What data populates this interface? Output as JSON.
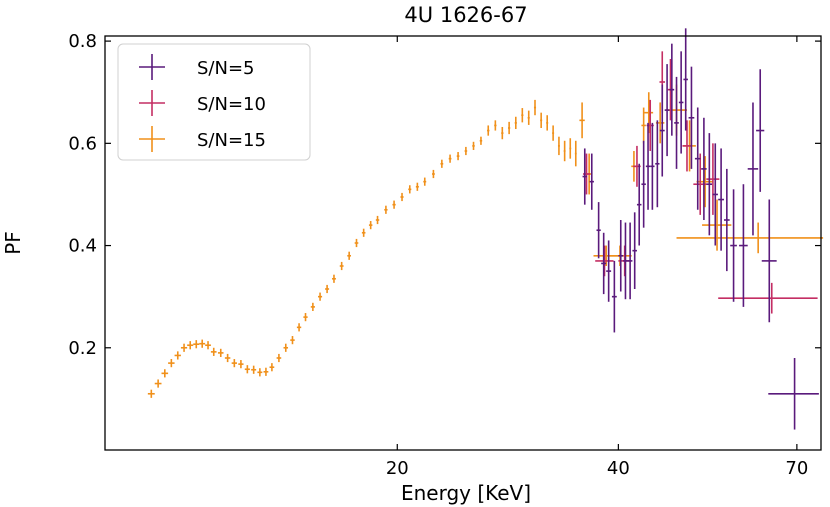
{
  "chart_data": {
    "type": "scatter",
    "title": "4U 1626-67",
    "xlabel": "Energy [KeV]",
    "ylabel": "PF",
    "xscale": "log",
    "xlim": [
      8.0,
      75.5
    ],
    "ylim": [
      0.0,
      0.81
    ],
    "xticks": [
      20,
      40,
      70
    ],
    "xtick_labels": [
      "20",
      "40",
      "70"
    ],
    "yticks": [
      0.2,
      0.4,
      0.6,
      0.8
    ],
    "ytick_labels": [
      "0.2",
      "0.4",
      "0.6",
      "0.8"
    ],
    "legend_position": "top-left",
    "series": [
      {
        "name": "S/N=15",
        "label": "S/N=15",
        "color": "#f0901a",
        "points": [
          [
            9.25,
            0.11,
            0.1,
            0.008
          ],
          [
            9.45,
            0.13,
            0.1,
            0.008
          ],
          [
            9.65,
            0.15,
            0.1,
            0.008
          ],
          [
            9.85,
            0.17,
            0.1,
            0.008
          ],
          [
            10.05,
            0.185,
            0.1,
            0.008
          ],
          [
            10.25,
            0.2,
            0.1,
            0.008
          ],
          [
            10.45,
            0.205,
            0.1,
            0.008
          ],
          [
            10.65,
            0.207,
            0.1,
            0.008
          ],
          [
            10.85,
            0.208,
            0.1,
            0.008
          ],
          [
            11.05,
            0.205,
            0.1,
            0.008
          ],
          [
            11.25,
            0.192,
            0.1,
            0.008
          ],
          [
            11.5,
            0.19,
            0.1,
            0.008
          ],
          [
            11.75,
            0.18,
            0.1,
            0.008
          ],
          [
            12.0,
            0.17,
            0.1,
            0.008
          ],
          [
            12.25,
            0.168,
            0.1,
            0.008
          ],
          [
            12.5,
            0.158,
            0.1,
            0.008
          ],
          [
            12.75,
            0.157,
            0.1,
            0.008
          ],
          [
            13.0,
            0.152,
            0.1,
            0.008
          ],
          [
            13.25,
            0.153,
            0.1,
            0.008
          ],
          [
            13.5,
            0.162,
            0.1,
            0.008
          ],
          [
            13.8,
            0.18,
            0.1,
            0.008
          ],
          [
            14.1,
            0.2,
            0.1,
            0.008
          ],
          [
            14.4,
            0.215,
            0.1,
            0.008
          ],
          [
            14.7,
            0.24,
            0.1,
            0.008
          ],
          [
            15.0,
            0.26,
            0.1,
            0.008
          ],
          [
            15.35,
            0.28,
            0.1,
            0.008
          ],
          [
            15.7,
            0.3,
            0.1,
            0.008
          ],
          [
            16.05,
            0.315,
            0.1,
            0.008
          ],
          [
            16.4,
            0.335,
            0.1,
            0.008
          ],
          [
            16.8,
            0.36,
            0.1,
            0.008
          ],
          [
            17.2,
            0.38,
            0.1,
            0.008
          ],
          [
            17.6,
            0.405,
            0.1,
            0.008
          ],
          [
            18.0,
            0.425,
            0.1,
            0.008
          ],
          [
            18.4,
            0.44,
            0.1,
            0.008
          ],
          [
            18.8,
            0.45,
            0.1,
            0.008
          ],
          [
            19.3,
            0.47,
            0.1,
            0.008
          ],
          [
            19.8,
            0.48,
            0.1,
            0.008
          ],
          [
            20.3,
            0.495,
            0.1,
            0.008
          ],
          [
            20.8,
            0.51,
            0.1,
            0.008
          ],
          [
            21.3,
            0.515,
            0.1,
            0.008
          ],
          [
            21.8,
            0.525,
            0.1,
            0.008
          ],
          [
            22.4,
            0.54,
            0.1,
            0.008
          ],
          [
            23.0,
            0.56,
            0.1,
            0.008
          ],
          [
            23.6,
            0.57,
            0.1,
            0.008
          ],
          [
            24.2,
            0.575,
            0.1,
            0.008
          ],
          [
            24.8,
            0.585,
            0.1,
            0.008
          ],
          [
            25.4,
            0.595,
            0.1,
            0.008
          ],
          [
            26.0,
            0.605,
            0.1,
            0.008
          ],
          [
            26.6,
            0.625,
            0.1,
            0.01
          ],
          [
            27.2,
            0.635,
            0.1,
            0.01
          ],
          [
            27.8,
            0.62,
            0.1,
            0.012
          ],
          [
            28.4,
            0.63,
            0.1,
            0.012
          ],
          [
            29.0,
            0.64,
            0.1,
            0.012
          ],
          [
            29.6,
            0.655,
            0.1,
            0.014
          ],
          [
            30.2,
            0.65,
            0.1,
            0.014
          ],
          [
            30.8,
            0.67,
            0.1,
            0.015
          ],
          [
            31.4,
            0.645,
            0.1,
            0.015
          ],
          [
            32.0,
            0.64,
            0.1,
            0.015
          ],
          [
            32.6,
            0.62,
            0.1,
            0.015
          ],
          [
            33.2,
            0.595,
            0.1,
            0.018
          ],
          [
            33.8,
            0.585,
            0.1,
            0.02
          ],
          [
            34.4,
            0.59,
            0.1,
            0.02
          ],
          [
            35.0,
            0.58,
            0.1,
            0.025
          ],
          [
            35.7,
            0.645,
            0.3,
            0.035
          ],
          [
            36.5,
            0.54,
            0.35,
            0.04
          ],
          [
            38.5,
            0.38,
            1.5,
            0.02
          ],
          [
            40.2,
            0.38,
            1.5,
            0.02
          ],
          [
            42.0,
            0.555,
            0.35,
            0.03
          ],
          [
            43.3,
            0.635,
            0.3,
            0.035
          ],
          [
            44.0,
            0.66,
            0.6,
            0.04
          ],
          [
            45.6,
            0.64,
            0.6,
            0.04
          ],
          [
            48.0,
            0.665,
            1.6,
            0.05
          ],
          [
            50.0,
            0.595,
            1.0,
            0.05
          ],
          [
            52.5,
            0.525,
            1.4,
            0.05
          ],
          [
            54.5,
            0.44,
            2.5,
            0.05
          ],
          [
            62.0,
            0.415,
            14.0,
            0.03
          ]
        ]
      },
      {
        "name": "S/N=10",
        "label": "S/N=10",
        "color": "#c42e63",
        "points": [
          [
            36.2,
            0.54,
            0.4,
            0.04
          ],
          [
            38.3,
            0.37,
            1.1,
            0.03
          ],
          [
            40.8,
            0.37,
            0.8,
            0.03
          ],
          [
            42.4,
            0.555,
            0.5,
            0.04
          ],
          [
            44.2,
            0.635,
            0.5,
            0.05
          ],
          [
            45.9,
            0.72,
            0.4,
            0.06
          ],
          [
            47.1,
            0.705,
            0.4,
            0.06
          ],
          [
            49.6,
            0.595,
            0.7,
            0.05
          ],
          [
            51.7,
            0.52,
            1.1,
            0.06
          ],
          [
            53.8,
            0.53,
            1.1,
            0.07
          ],
          [
            64.7,
            0.297,
            10.0,
            0.03
          ]
        ]
      },
      {
        "name": "S/N=5",
        "label": "S/N=5",
        "color": "#5a1a7c",
        "points": [
          [
            36.0,
            0.535,
            0.25,
            0.055
          ],
          [
            36.8,
            0.525,
            0.25,
            0.055
          ],
          [
            37.6,
            0.43,
            0.25,
            0.055
          ],
          [
            38.2,
            0.365,
            0.3,
            0.06
          ],
          [
            38.8,
            0.35,
            0.3,
            0.06
          ],
          [
            39.5,
            0.3,
            0.3,
            0.07
          ],
          [
            40.3,
            0.38,
            0.3,
            0.07
          ],
          [
            40.9,
            0.37,
            0.3,
            0.075
          ],
          [
            41.5,
            0.37,
            0.3,
            0.075
          ],
          [
            42.1,
            0.39,
            0.3,
            0.075
          ],
          [
            42.7,
            0.48,
            0.3,
            0.08
          ],
          [
            43.3,
            0.52,
            0.3,
            0.085
          ],
          [
            43.9,
            0.555,
            0.3,
            0.085
          ],
          [
            44.5,
            0.555,
            0.3,
            0.085
          ],
          [
            45.2,
            0.56,
            0.3,
            0.085
          ],
          [
            45.9,
            0.625,
            0.35,
            0.09
          ],
          [
            46.6,
            0.665,
            0.35,
            0.09
          ],
          [
            47.3,
            0.705,
            0.35,
            0.09
          ],
          [
            48.0,
            0.64,
            0.35,
            0.09
          ],
          [
            48.7,
            0.68,
            0.35,
            0.1
          ],
          [
            49.4,
            0.725,
            0.35,
            0.1
          ],
          [
            50.3,
            0.65,
            0.45,
            0.1
          ],
          [
            51.3,
            0.57,
            0.45,
            0.1
          ],
          [
            52.3,
            0.55,
            0.45,
            0.1
          ],
          [
            53.2,
            0.52,
            0.45,
            0.1
          ],
          [
            54.2,
            0.5,
            0.45,
            0.1
          ],
          [
            55.2,
            0.49,
            0.5,
            0.1
          ],
          [
            56.2,
            0.45,
            0.5,
            0.1
          ],
          [
            57.4,
            0.4,
            0.6,
            0.11
          ],
          [
            59.2,
            0.4,
            0.8,
            0.12
          ],
          [
            61.0,
            0.55,
            1.0,
            0.13
          ],
          [
            62.4,
            0.625,
            0.8,
            0.12
          ],
          [
            64.2,
            0.37,
            1.5,
            0.12
          ],
          [
            69.5,
            0.11,
            5.5,
            0.07
          ]
        ]
      }
    ]
  }
}
